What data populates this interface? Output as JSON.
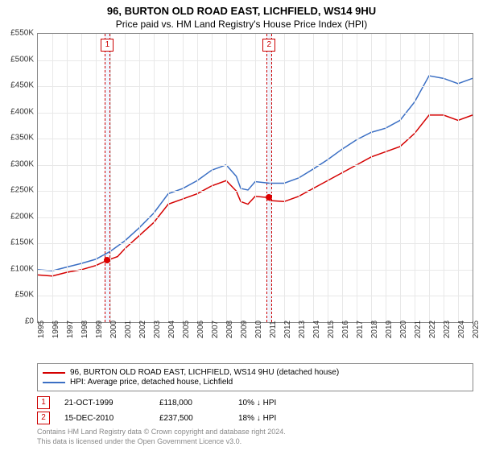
{
  "title": "96, BURTON OLD ROAD EAST, LICHFIELD, WS14 9HU",
  "subtitle": "Price paid vs. HM Land Registry's House Price Index (HPI)",
  "chart": {
    "type": "line",
    "background_color": "#ffffff",
    "grid_color": "#e8e8e8",
    "border_color": "#888888",
    "x_years": [
      1995,
      1996,
      1997,
      1998,
      1999,
      2000,
      2001,
      2002,
      2003,
      2004,
      2005,
      2006,
      2007,
      2008,
      2009,
      2010,
      2011,
      2012,
      2013,
      2014,
      2015,
      2016,
      2017,
      2018,
      2019,
      2020,
      2021,
      2022,
      2023,
      2024,
      2025
    ],
    "xlim": [
      1995,
      2025
    ],
    "ylim": [
      0,
      550000
    ],
    "ytick_step": 50000,
    "ytick_labels": [
      "£0",
      "£50K",
      "£100K",
      "£150K",
      "£200K",
      "£250K",
      "£300K",
      "£350K",
      "£400K",
      "£450K",
      "£500K",
      "£550K"
    ],
    "label_fontsize": 10,
    "title_fontsize": 13,
    "series": [
      {
        "name": "price_paid",
        "label": "96, BURTON OLD ROAD EAST, LICHFIELD, WS14 9HU (detached house)",
        "color": "#d40000",
        "line_width": 1.5,
        "points": [
          [
            1995,
            90000
          ],
          [
            1996,
            88000
          ],
          [
            1997,
            95000
          ],
          [
            1998,
            100000
          ],
          [
            1999,
            108000
          ],
          [
            1999.8,
            118000
          ],
          [
            2000.5,
            125000
          ],
          [
            2001,
            140000
          ],
          [
            2002,
            165000
          ],
          [
            2003,
            190000
          ],
          [
            2004,
            225000
          ],
          [
            2005,
            235000
          ],
          [
            2006,
            245000
          ],
          [
            2007,
            260000
          ],
          [
            2008,
            270000
          ],
          [
            2008.7,
            250000
          ],
          [
            2009,
            230000
          ],
          [
            2009.5,
            225000
          ],
          [
            2010,
            240000
          ],
          [
            2010.96,
            237500
          ],
          [
            2011,
            232000
          ],
          [
            2012,
            230000
          ],
          [
            2013,
            240000
          ],
          [
            2014,
            255000
          ],
          [
            2015,
            270000
          ],
          [
            2016,
            285000
          ],
          [
            2017,
            300000
          ],
          [
            2018,
            315000
          ],
          [
            2019,
            325000
          ],
          [
            2020,
            335000
          ],
          [
            2021,
            360000
          ],
          [
            2022,
            395000
          ],
          [
            2023,
            395000
          ],
          [
            2024,
            385000
          ],
          [
            2025,
            395000
          ]
        ]
      },
      {
        "name": "hpi",
        "label": "HPI: Average price, detached house, Lichfield",
        "color": "#3b6fc4",
        "line_width": 1.5,
        "points": [
          [
            1995,
            100000
          ],
          [
            1996,
            98000
          ],
          [
            1997,
            105000
          ],
          [
            1998,
            112000
          ],
          [
            1999,
            120000
          ],
          [
            2000,
            135000
          ],
          [
            2001,
            155000
          ],
          [
            2002,
            180000
          ],
          [
            2003,
            208000
          ],
          [
            2004,
            245000
          ],
          [
            2005,
            255000
          ],
          [
            2006,
            270000
          ],
          [
            2007,
            290000
          ],
          [
            2008,
            300000
          ],
          [
            2008.7,
            278000
          ],
          [
            2009,
            255000
          ],
          [
            2009.5,
            252000
          ],
          [
            2010,
            268000
          ],
          [
            2011,
            265000
          ],
          [
            2012,
            265000
          ],
          [
            2013,
            275000
          ],
          [
            2014,
            292000
          ],
          [
            2015,
            310000
          ],
          [
            2016,
            330000
          ],
          [
            2017,
            348000
          ],
          [
            2018,
            362000
          ],
          [
            2019,
            370000
          ],
          [
            2020,
            385000
          ],
          [
            2021,
            420000
          ],
          [
            2022,
            470000
          ],
          [
            2023,
            465000
          ],
          [
            2024,
            455000
          ],
          [
            2025,
            465000
          ]
        ]
      }
    ],
    "markers": [
      {
        "num": "1",
        "x": 1999.8,
        "y": 118000,
        "band_width_years": 0.4
      },
      {
        "num": "2",
        "x": 2010.96,
        "y": 237500,
        "band_width_years": 0.4
      }
    ]
  },
  "legend": {
    "items": [
      {
        "color": "#d40000",
        "label": "96, BURTON OLD ROAD EAST, LICHFIELD, WS14 9HU (detached house)"
      },
      {
        "color": "#3b6fc4",
        "label": "HPI: Average price, detached house, Lichfield"
      }
    ]
  },
  "events": [
    {
      "num": "1",
      "date": "21-OCT-1999",
      "price": "£118,000",
      "diff": "10%",
      "arrow": "↓",
      "vs": "HPI"
    },
    {
      "num": "2",
      "date": "15-DEC-2010",
      "price": "£237,500",
      "diff": "18%",
      "arrow": "↓",
      "vs": "HPI"
    }
  ],
  "footer": {
    "line1": "Contains HM Land Registry data © Crown copyright and database right 2024.",
    "line2": "This data is licensed under the Open Government Licence v3.0."
  },
  "colors": {
    "marker_border": "#cc0000",
    "marker_band": "rgba(200,220,255,0.25)",
    "footer_text": "#888888"
  }
}
